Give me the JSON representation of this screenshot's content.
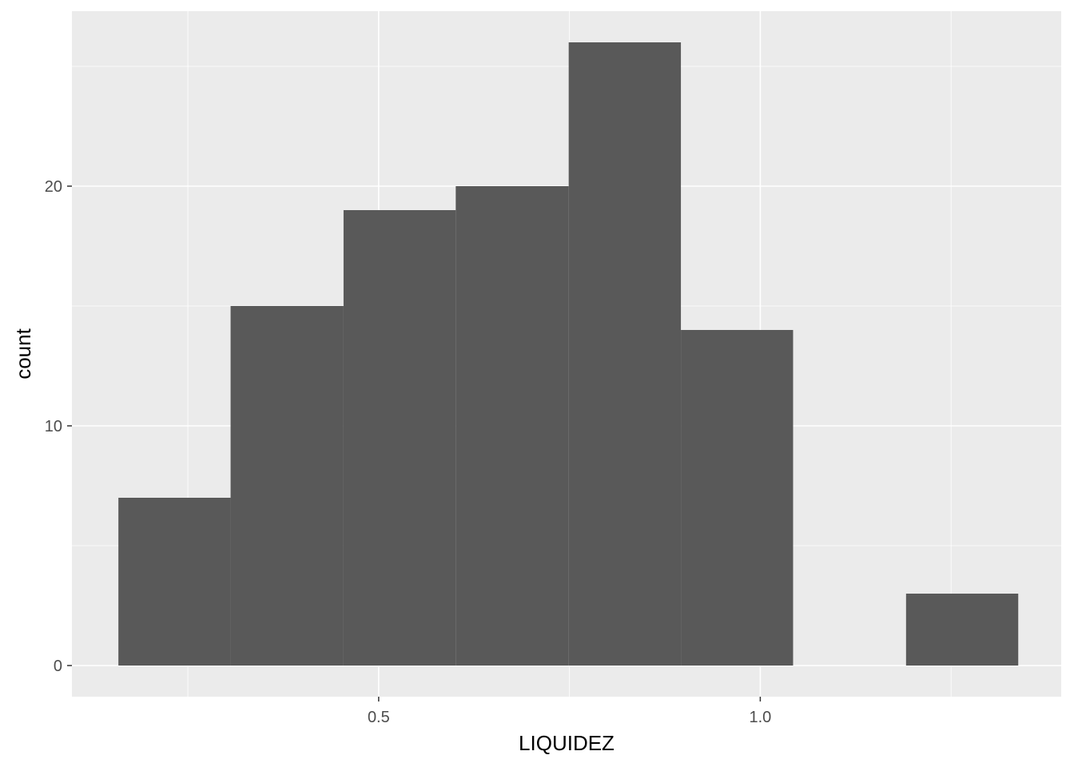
{
  "chart_data": {
    "type": "bar",
    "subtype": "histogram",
    "title": "",
    "xlabel": "LIQUIDEZ",
    "ylabel": "count",
    "xlim": [
      0.0981,
      1.3943
    ],
    "ylim": [
      -1.3,
      27.3
    ],
    "x_ticks": [
      0.5,
      1.0
    ],
    "x_tick_labels": [
      "0.5",
      "1.0"
    ],
    "y_ticks": [
      0,
      10,
      20
    ],
    "y_tick_labels": [
      "0",
      "10",
      "20"
    ],
    "grid": true,
    "legend": "none",
    "bins": [
      {
        "x0": 0.159,
        "x1": 0.306,
        "count": 7
      },
      {
        "x0": 0.306,
        "x1": 0.454,
        "count": 15
      },
      {
        "x0": 0.454,
        "x1": 0.601,
        "count": 19
      },
      {
        "x0": 0.601,
        "x1": 0.749,
        "count": 20
      },
      {
        "x0": 0.749,
        "x1": 0.896,
        "count": 26
      },
      {
        "x0": 0.896,
        "x1": 1.043,
        "count": 14
      },
      {
        "x0": 1.043,
        "x1": 1.191,
        "count": 0
      },
      {
        "x0": 1.191,
        "x1": 1.338,
        "count": 3
      }
    ],
    "colors": {
      "panel_background": "#EBEBEB",
      "grid_major": "#FFFFFF",
      "bar_fill": "#595959"
    }
  }
}
